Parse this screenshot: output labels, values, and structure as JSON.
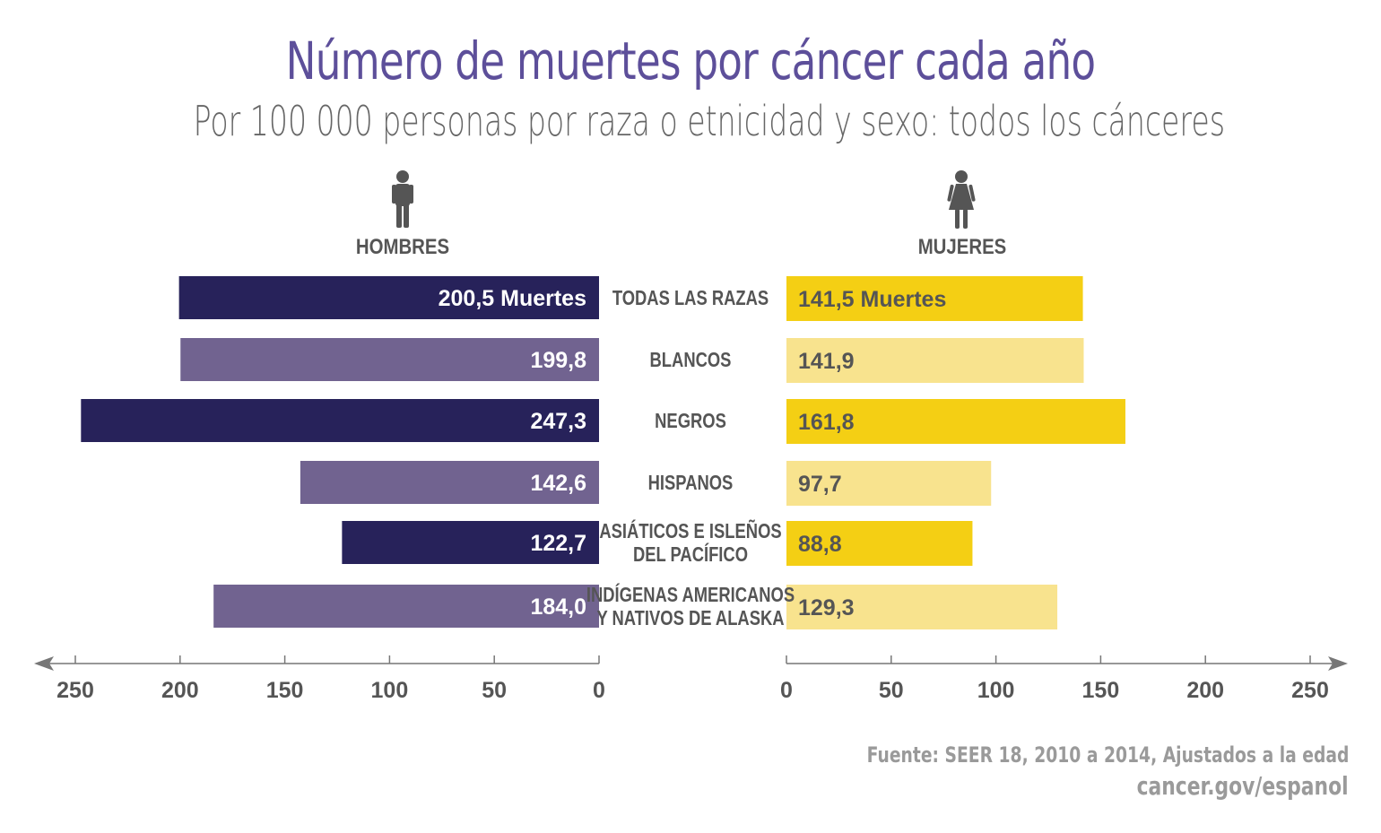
{
  "chart_data": {
    "type": "bar",
    "title": "Número de muertes por cáncer cada año",
    "subtitle": "Por 100 000 personas por raza o etnicidad y sexo: todos los cánceres",
    "categories": [
      [
        "TODAS LAS RAZAS"
      ],
      [
        "BLANCOS"
      ],
      [
        "NEGROS"
      ],
      [
        "HISPANOS"
      ],
      [
        "ASIÁTICOS E ISLEÑOS",
        "DEL PACÍFICO"
      ],
      [
        "INDÍGENAS AMERICANOS",
        "Y NATIVOS DE ALASKA"
      ]
    ],
    "series": [
      {
        "name": "HOMBRES",
        "values": [
          200.5,
          199.8,
          247.3,
          142.6,
          122.7,
          184.0
        ],
        "labels": [
          "200,5 Muertes",
          "199,8",
          "247,3",
          "142,6",
          "122,7",
          "184,0"
        ],
        "colors": [
          "#27225a",
          "#716390"
        ]
      },
      {
        "name": "MUJERES",
        "values": [
          141.5,
          141.9,
          161.8,
          97.7,
          88.8,
          129.3
        ],
        "labels": [
          "141,5 Muertes",
          "141,9",
          "161,8",
          "97,7",
          "88,8",
          "129,3"
        ],
        "colors": [
          "#f4cf14",
          "#f8e38e"
        ]
      }
    ],
    "xlim": [
      0,
      250
    ],
    "ticks": [
      0,
      50,
      100,
      150,
      200,
      250
    ]
  },
  "footer": {
    "source": "Fuente: SEER 18, 2010 a 2014, Ajustados a la edad",
    "site": "cancer.gov/espanol"
  },
  "colors": {
    "title": "#5d4f9a",
    "text": "#555555",
    "axis": "#777777",
    "footer": "#9a9a9a"
  },
  "icons": {
    "men": "man-icon",
    "women": "woman-icon"
  }
}
